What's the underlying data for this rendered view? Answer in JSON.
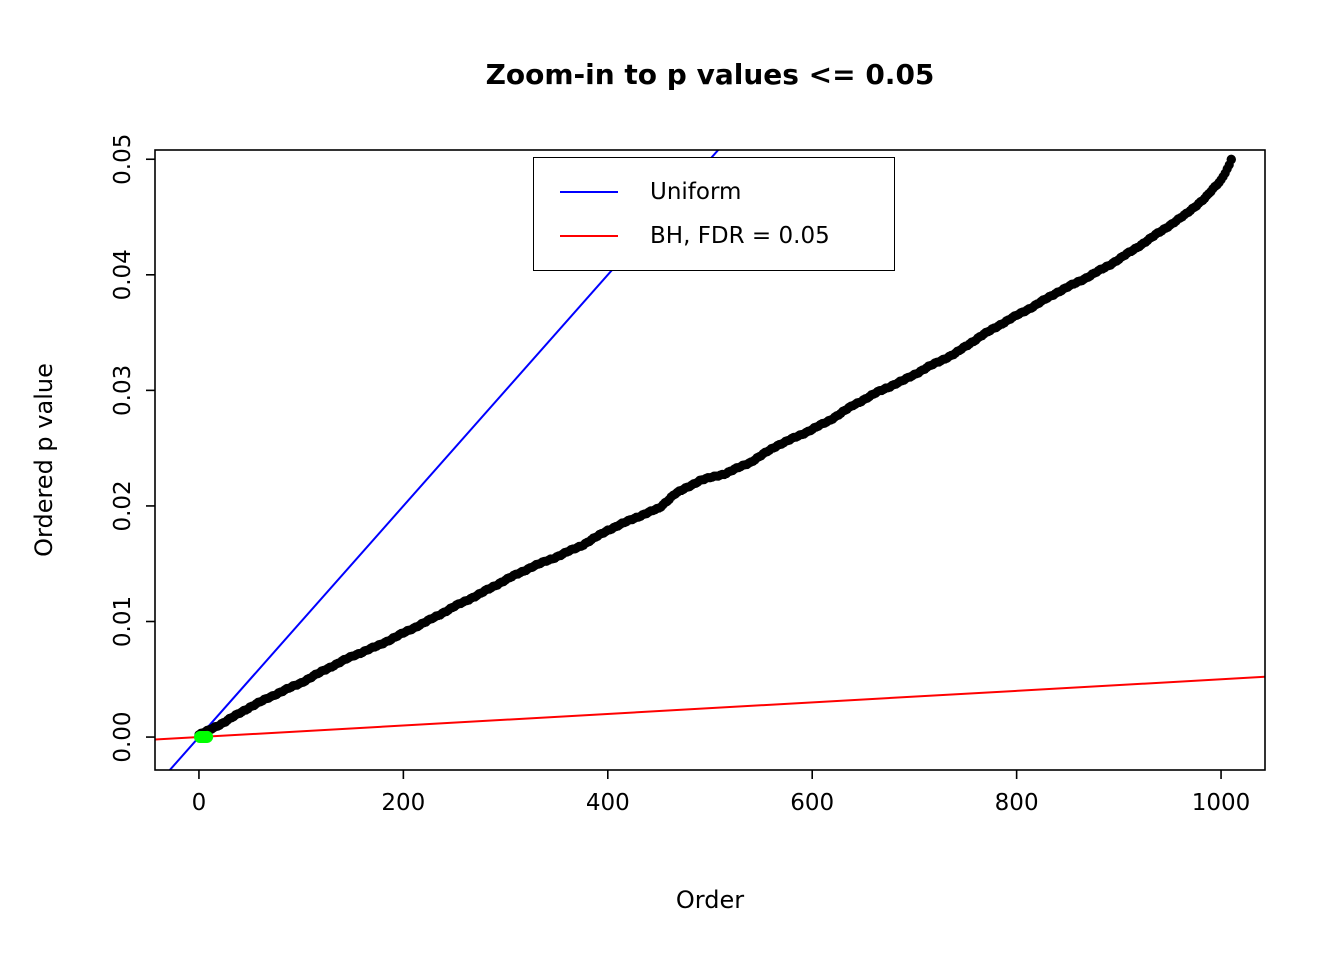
{
  "chart_data": {
    "type": "scatter",
    "title": "Zoom-in to p values <= 0.05",
    "xlabel": "Order",
    "ylabel": "Ordered p value",
    "x_range": [
      -43,
      1043
    ],
    "y_range": [
      -0.00285,
      0.0508
    ],
    "x_ticks": [
      0,
      200,
      400,
      600,
      800,
      1000
    ],
    "y_ticks": [
      0,
      0.01,
      0.02,
      0.03,
      0.04,
      0.05
    ],
    "grid": false,
    "legend_position": "top-center",
    "legend": [
      {
        "label": "Uniform",
        "color": "#0000ff"
      },
      {
        "label": "BH, FDR = 0.05",
        "color": "#ff0000"
      }
    ],
    "series": [
      {
        "name": "Ordered p values",
        "role": "points",
        "color": "#000000",
        "marker_radius": 4.6,
        "step": 2,
        "control_points": [
          [
            0,
            0.0002
          ],
          [
            10,
            0.0006
          ],
          [
            25,
            0.0013
          ],
          [
            50,
            0.0026
          ],
          [
            75,
            0.0037
          ],
          [
            100,
            0.0047
          ],
          [
            125,
            0.0059
          ],
          [
            150,
            0.007
          ],
          [
            175,
            0.0079
          ],
          [
            200,
            0.009
          ],
          [
            225,
            0.0101
          ],
          [
            250,
            0.0113
          ],
          [
            275,
            0.0124
          ],
          [
            300,
            0.0136
          ],
          [
            325,
            0.0147
          ],
          [
            350,
            0.0156
          ],
          [
            375,
            0.0166
          ],
          [
            400,
            0.0179
          ],
          [
            425,
            0.0189
          ],
          [
            450,
            0.0198
          ],
          [
            465,
            0.021
          ],
          [
            490,
            0.0222
          ],
          [
            515,
            0.0228
          ],
          [
            540,
            0.0238
          ],
          [
            565,
            0.0252
          ],
          [
            590,
            0.0262
          ],
          [
            615,
            0.0273
          ],
          [
            640,
            0.0287
          ],
          [
            665,
            0.0299
          ],
          [
            690,
            0.0309
          ],
          [
            715,
            0.0321
          ],
          [
            740,
            0.0332
          ],
          [
            765,
            0.0347
          ],
          [
            790,
            0.036
          ],
          [
            815,
            0.0372
          ],
          [
            840,
            0.0385
          ],
          [
            865,
            0.0396
          ],
          [
            890,
            0.0408
          ],
          [
            915,
            0.0422
          ],
          [
            940,
            0.0437
          ],
          [
            965,
            0.0452
          ],
          [
            985,
            0.0467
          ],
          [
            1000,
            0.0482
          ],
          [
            1008,
            0.0495
          ],
          [
            1010,
            0.05
          ]
        ]
      },
      {
        "name": "Uniform",
        "role": "line",
        "color": "#0000ff",
        "slope": 0.0001,
        "intercept": 0
      },
      {
        "name": "BH, FDR = 0.05",
        "role": "line",
        "color": "#ff0000",
        "slope": 5e-06,
        "intercept": 0
      },
      {
        "name": "BH significant points",
        "role": "points",
        "color": "#00ff00",
        "marker_radius": 6,
        "points": [
          [
            1,
            3e-07
          ],
          [
            2,
            9e-07
          ],
          [
            3,
            1.5e-06
          ],
          [
            4,
            2.8e-06
          ],
          [
            5,
            4.2e-06
          ],
          [
            6,
            6.3e-06
          ],
          [
            7,
            9.1e-06
          ],
          [
            8,
            1.35e-05
          ]
        ]
      }
    ]
  }
}
